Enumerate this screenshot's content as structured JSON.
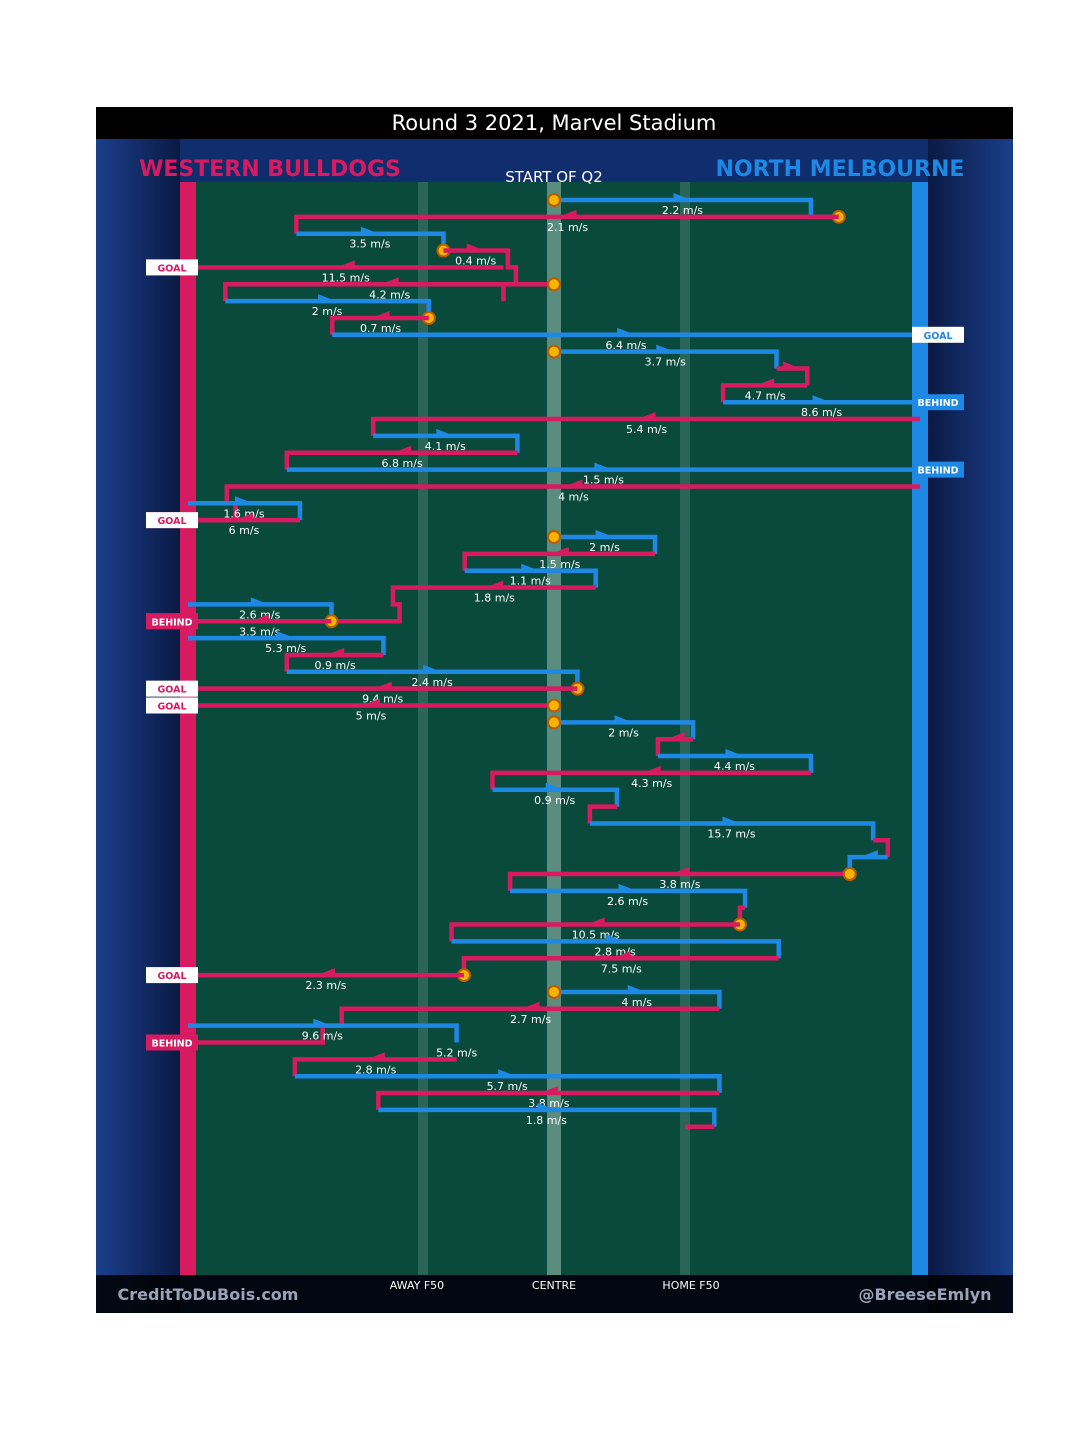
{
  "title": "Round 3 2021, Marvel Stadium",
  "subtitle": "START OF Q2",
  "teams": {
    "home": {
      "name": "WESTERN BULLDOGS",
      "color": "#d81b60"
    },
    "away": {
      "name": "NORTH MELBOURNE",
      "color": "#1e88e5"
    }
  },
  "axis_labels": {
    "away_f50": "AWAY F50",
    "centre": "CENTRE",
    "home_f50": "HOME F50"
  },
  "credit": "CreditToDuBois.com",
  "handle": "@BreeseEmlyn",
  "colors": {
    "field": "#0a4a3c",
    "frame": "#000000",
    "bands": "#102d6e",
    "marker": "#f5b400",
    "marker_outline": "#b85c00",
    "goal_tag_bg": "#ffffff",
    "behind_tag_text": "#ffffff"
  },
  "chart_data": {
    "type": "line",
    "title": "Round 3 2021, Marvel Stadium",
    "x_scale": "field position from Western Bulldogs goal (0) to North Melbourne goal (1); centre = 0.5",
    "xlim": [
      0,
      1
    ],
    "series": [
      {
        "team": "NM",
        "seq": 1,
        "label": "2.2 m/s",
        "path": [
          0.5,
          0.851,
          0.851,
          0.889
        ],
        "start_marker": true,
        "end_marker": true
      },
      {
        "team": "WB",
        "seq": 2,
        "label": "2.1 m/s",
        "path": [
          0.889,
          0.148,
          0.148
        ],
        "start_marker": false,
        "end_marker": false
      },
      {
        "team": "NM",
        "seq": 3,
        "label": "3.5 m/s",
        "path": [
          0.148,
          0.349,
          0.349
        ],
        "end_marker": true
      },
      {
        "team": "WB",
        "seq": 4,
        "label": "0.4 m/s",
        "path": [
          0.349,
          0.437,
          0.437,
          0.448,
          0.448,
          0.431,
          0.431
        ],
        "end_marker": false
      },
      {
        "team": "WB",
        "seq": 5,
        "label": "11.5 m/s",
        "path": [
          0.431,
          0
        ],
        "result": "GOAL"
      },
      {
        "team": "WB",
        "seq": 6,
        "label": "4.2 m/s",
        "path": [
          0.5,
          0.051,
          0.051
        ],
        "start_marker": true
      },
      {
        "team": "NM",
        "seq": 7,
        "label": "2 m/s",
        "path": [
          0.051,
          0.329,
          0.329
        ],
        "end_marker": true
      },
      {
        "team": "WB",
        "seq": 8,
        "label": "0.7 m/s",
        "path": [
          0.329,
          0.197,
          0.197
        ]
      },
      {
        "team": "NM",
        "seq": 9,
        "label": "6.4 m/s",
        "path": [
          0.197,
          1
        ],
        "result": "GOAL"
      },
      {
        "team": "NM",
        "seq": 10,
        "label": "3.7 m/s",
        "path": [
          0.5,
          0.804,
          0.804
        ],
        "start_marker": true
      },
      {
        "team": "WB",
        "seq": 11,
        "label": "",
        "path": [
          0.804,
          0.846,
          0.846
        ]
      },
      {
        "team": "WB",
        "seq": 12,
        "label": "4.7 m/s",
        "path": [
          0.846,
          0.731,
          0.731
        ]
      },
      {
        "team": "NM",
        "seq": 13,
        "label": "8.6 m/s",
        "path": [
          0.731,
          1
        ],
        "result": "BEHIND"
      },
      {
        "team": "WB",
        "seq": 14,
        "label": "5.4 m/s",
        "path": [
          1,
          0.253,
          0.253
        ]
      },
      {
        "team": "NM",
        "seq": 15,
        "label": "4.1 m/s",
        "path": [
          0.253,
          0.45,
          0.45
        ]
      },
      {
        "team": "WB",
        "seq": 16,
        "label": "6.8 m/s",
        "path": [
          0.45,
          0.135,
          0.135
        ]
      },
      {
        "team": "NM",
        "seq": 17,
        "label": "1.5 m/s",
        "path": [
          0.135,
          1
        ],
        "result": "BEHIND"
      },
      {
        "team": "WB",
        "seq": 18,
        "label": "4 m/s",
        "path": [
          1,
          0.053,
          0.053,
          0.065,
          0.065,
          0
        ],
        "result": "BEHIND"
      },
      {
        "team": "NM",
        "seq": 19,
        "label": "1.6 m/s",
        "path": [
          0,
          0.153,
          0.153
        ]
      },
      {
        "team": "WB",
        "seq": 20,
        "label": "6 m/s",
        "path": [
          0.153,
          0
        ],
        "result": "GOAL"
      },
      {
        "team": "NM",
        "seq": 21,
        "label": "2 m/s",
        "path": [
          0.5,
          0.638,
          0.638
        ],
        "start_marker": true
      },
      {
        "team": "WB",
        "seq": 22,
        "label": "1.5 m/s",
        "path": [
          0.638,
          0.378,
          0.378
        ]
      },
      {
        "team": "NM",
        "seq": 23,
        "label": "1.1 m/s",
        "path": [
          0.378,
          0.557,
          0.557
        ]
      },
      {
        "team": "WB",
        "seq": 24,
        "label": "1.8 m/s",
        "path": [
          0.557,
          0.28,
          0.28,
          0.289,
          0.289,
          0
        ],
        "result": "BEHIND"
      },
      {
        "team": "NM",
        "seq": 25,
        "label": "2.6 m/s",
        "path": [
          0,
          0.196,
          0.196
        ],
        "end_marker": true
      },
      {
        "team": "WB",
        "seq": 26,
        "label": "3.5 m/s",
        "path": [
          0.196,
          0
        ],
        "result": "BEHIND"
      },
      {
        "team": "NM",
        "seq": 27,
        "label": "5.3 m/s",
        "path": [
          0,
          0.267,
          0.267
        ]
      },
      {
        "team": "WB",
        "seq": 28,
        "label": "0.9 m/s",
        "path": [
          0.267,
          0.135,
          0.135
        ]
      },
      {
        "team": "NM",
        "seq": 29,
        "label": "2.4 m/s",
        "path": [
          0.135,
          0.532,
          0.532
        ],
        "end_marker": true
      },
      {
        "team": "WB",
        "seq": 30,
        "label": "9.4 m/s",
        "path": [
          0.532,
          0
        ],
        "result": "GOAL"
      },
      {
        "team": "WB",
        "seq": 31,
        "label": "5 m/s",
        "path": [
          0.5,
          0
        ],
        "start_marker": true,
        "result": "GOAL"
      },
      {
        "team": "NM",
        "seq": 32,
        "label": "2 m/s",
        "path": [
          0.5,
          0.69,
          0.69
        ],
        "start_marker": true
      },
      {
        "team": "WB",
        "seq": 33,
        "label": "",
        "path": [
          0.69,
          0.642,
          0.642
        ]
      },
      {
        "team": "NM",
        "seq": 34,
        "label": "4.4 m/s",
        "path": [
          0.642,
          0.851,
          0.851
        ]
      },
      {
        "team": "WB",
        "seq": 35,
        "label": "4.3 m/s",
        "path": [
          0.851,
          0.416,
          0.416
        ]
      },
      {
        "team": "NM",
        "seq": 36,
        "label": "0.9 m/s",
        "path": [
          0.416,
          0.586,
          0.586
        ]
      },
      {
        "team": "WB",
        "seq": 37,
        "label": "",
        "path": [
          0.586,
          0.549,
          0.549
        ]
      },
      {
        "team": "NM",
        "seq": 38,
        "label": "15.7 m/s",
        "path": [
          0.549,
          0.936,
          0.936
        ]
      },
      {
        "team": "WB",
        "seq": 39,
        "label": "",
        "path": [
          0.936,
          0.956,
          0.956
        ]
      },
      {
        "team": "NM",
        "seq": 40,
        "label": "",
        "path": [
          0.956,
          0.904,
          0.904
        ],
        "end_marker": true
      },
      {
        "team": "WB",
        "seq": 41,
        "label": "3.8 m/s",
        "path": [
          0.904,
          0.44,
          0.44
        ],
        "start_marker": true
      },
      {
        "team": "NM",
        "seq": 42,
        "label": "2.6 m/s",
        "path": [
          0.44,
          0.761,
          0.761
        ]
      },
      {
        "team": "WB",
        "seq": 43,
        "label": "",
        "path": [
          0.761,
          0.754,
          0.754
        ],
        "end_marker": true
      },
      {
        "team": "WB",
        "seq": 44,
        "label": "10.5 m/s",
        "path": [
          0.754,
          0.36,
          0.36
        ]
      },
      {
        "team": "NM",
        "seq": 45,
        "label": "2.8 m/s",
        "path": [
          0.36,
          0.807,
          0.807
        ]
      },
      {
        "team": "WB",
        "seq": 46,
        "label": "7.5 m/s",
        "path": [
          0.807,
          0.377,
          0.377
        ],
        "end_marker": true
      },
      {
        "team": "WB",
        "seq": 47,
        "label": "2.3 m/s",
        "path": [
          0.377,
          0
        ],
        "result": "GOAL"
      },
      {
        "team": "NM",
        "seq": 48,
        "label": "4 m/s",
        "path": [
          0.5,
          0.726,
          0.726
        ],
        "start_marker": true
      },
      {
        "team": "WB",
        "seq": 49,
        "label": "2.7 m/s",
        "path": [
          0.726,
          0.21,
          0.21,
          0.184,
          0.184,
          0
        ],
        "result": "BEHIND"
      },
      {
        "team": "NM",
        "seq": 50,
        "label": "9.6 m/s",
        "path": [
          0,
          0.367,
          0.367
        ]
      },
      {
        "team": "NM",
        "seq": 51,
        "label": "5.2 m/s",
        "path": [
          0.367,
          0.367
        ]
      },
      {
        "team": "WB",
        "seq": 52,
        "label": "2.8 m/s",
        "path": [
          0.367,
          0.146,
          0.146
        ]
      },
      {
        "team": "NM",
        "seq": 53,
        "label": "5.7 m/s",
        "path": [
          0.146,
          0.726,
          0.726
        ]
      },
      {
        "team": "WB",
        "seq": 54,
        "label": "3.8 m/s",
        "path": [
          0.726,
          0.26,
          0.26
        ]
      },
      {
        "team": "NM",
        "seq": 55,
        "label": "1.8 m/s",
        "path": [
          0.26,
          0.719,
          0.719
        ]
      },
      {
        "team": "WB",
        "seq": 56,
        "label": "",
        "path": [
          0.719,
          0.679
        ]
      }
    ]
  }
}
